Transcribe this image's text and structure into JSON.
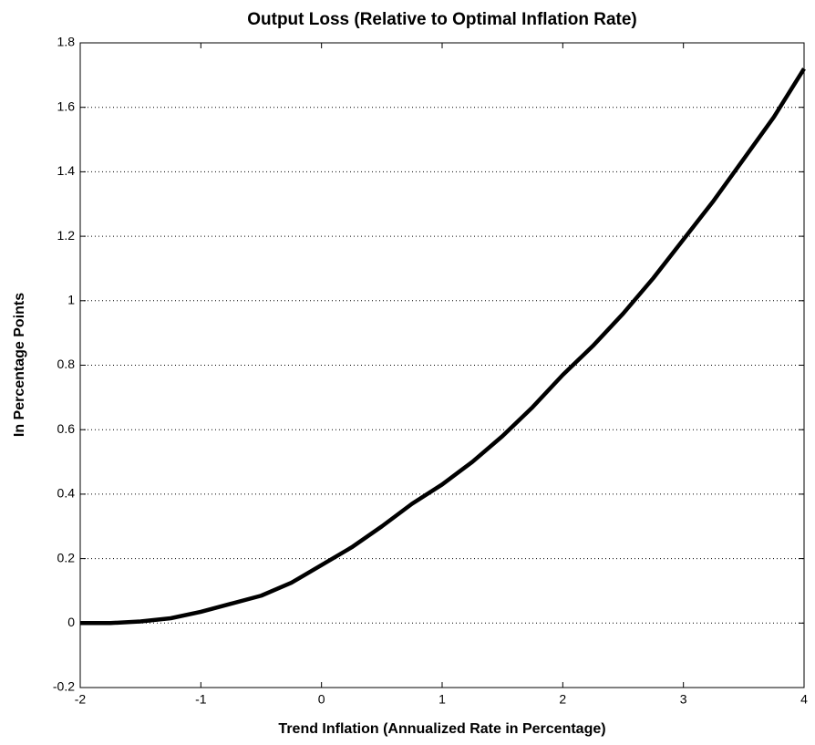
{
  "chart_data": {
    "type": "line",
    "title": "Output Loss (Relative to Optimal Inflation Rate)",
    "xlabel": "Trend Inflation (Annualized Rate in Percentage)",
    "ylabel": "In Percentage Points",
    "x": [
      -2,
      -1.75,
      -1.5,
      -1.25,
      -1,
      -0.75,
      -0.5,
      -0.25,
      0,
      0.25,
      0.5,
      0.75,
      1,
      1.25,
      1.5,
      1.75,
      2,
      2.25,
      2.5,
      2.75,
      3,
      3.25,
      3.5,
      3.75,
      4
    ],
    "series": [
      {
        "color": "#000000",
        "values": [
          0.0,
          0.0,
          0.005,
          0.015,
          0.035,
          0.06,
          0.085,
          0.125,
          0.18,
          0.235,
          0.3,
          0.37,
          0.43,
          0.5,
          0.58,
          0.67,
          0.77,
          0.86,
          0.96,
          1.07,
          1.19,
          1.31,
          1.44,
          1.57,
          1.72
        ]
      }
    ],
    "xlim": [
      -2,
      4
    ],
    "xticks": [
      -2,
      -1,
      0,
      1,
      2,
      3,
      4
    ],
    "ylim": [
      -0.2,
      1.8
    ],
    "yticks": [
      -0.2,
      0,
      0.2,
      0.4,
      0.6,
      0.8,
      1,
      1.2,
      1.4,
      1.6,
      1.8
    ],
    "grid": true
  }
}
